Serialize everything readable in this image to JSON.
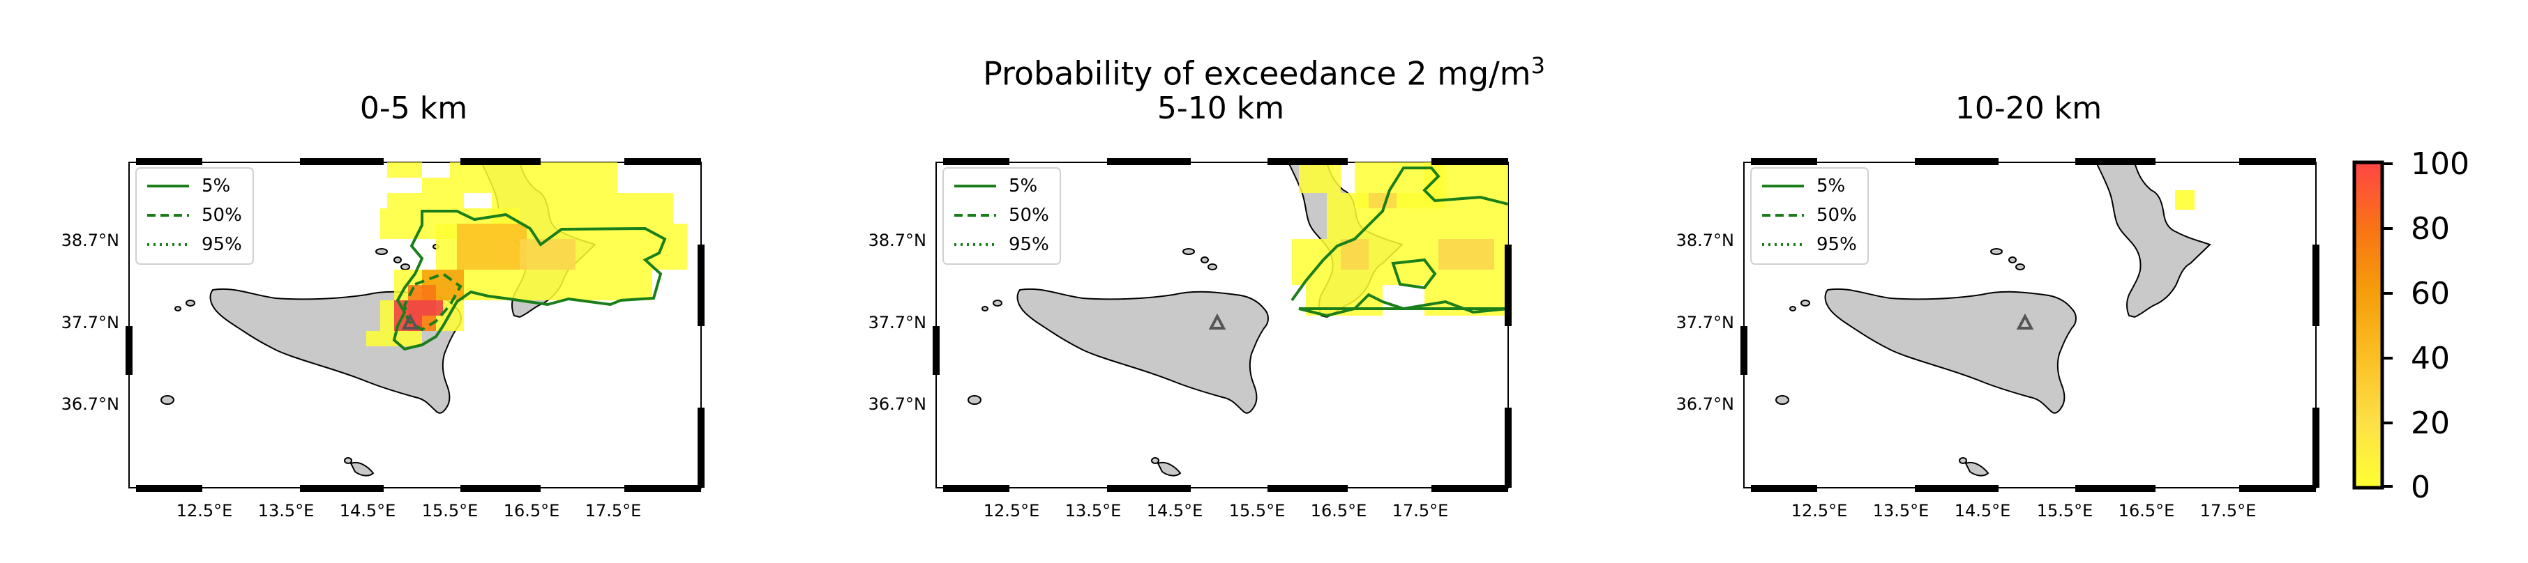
{
  "figure": {
    "suptitle": "Probability of exceedance 2 mg/m",
    "suptitle_superscript": "3"
  },
  "panels": [
    {
      "title": "0-5 km"
    },
    {
      "title": "5-10 km"
    },
    {
      "title": "10-20 km"
    }
  ],
  "axes": {
    "lon_ticks": [
      "12.5°E",
      "13.5°E",
      "14.5°E",
      "15.5°E",
      "16.5°E",
      "17.5°E"
    ],
    "lat_ticks": [
      "38.7°N",
      "37.7°N",
      "36.7°N"
    ]
  },
  "legend": {
    "items": [
      {
        "label": "5%",
        "style": "solid"
      },
      {
        "label": "50%",
        "style": "dashed"
      },
      {
        "label": "95%",
        "style": "dotted"
      }
    ]
  },
  "colorbar": {
    "ticks": [
      "100",
      "80",
      "60",
      "40",
      "20",
      "0"
    ],
    "range": [
      0,
      100
    ],
    "colormap": [
      "#ffff33",
      "#fde047",
      "#fbbf24",
      "#f59e0b",
      "#f97316",
      "#ef4444",
      "#ff4545"
    ]
  },
  "colors": {
    "land": "#c9c9c9",
    "contour": "#1a7f1a",
    "volcano_marker": "#555555"
  }
}
